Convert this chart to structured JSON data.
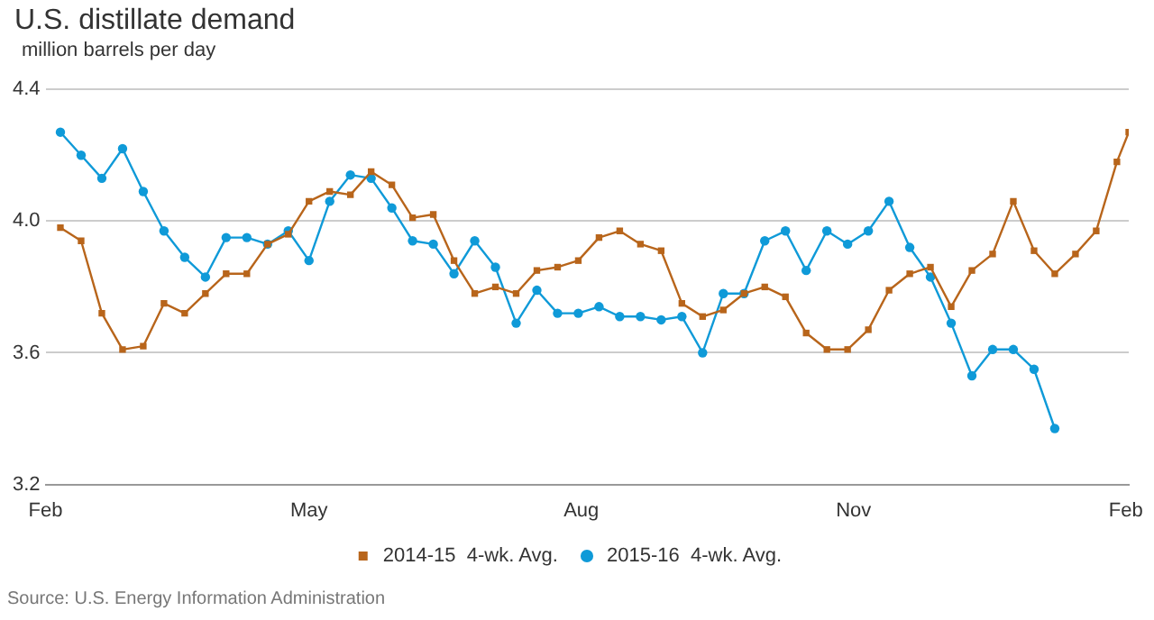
{
  "chart_data": {
    "type": "line",
    "title": "U.S. distillate demand",
    "subtitle": "million barrels per day",
    "annotations": [
      "Source: U.S. Energy Information Administration"
    ],
    "xlim": [
      "2015-02-01",
      "2016-02-02"
    ],
    "xticks": [
      {
        "value": "2015-02-01",
        "label": "Feb"
      },
      {
        "value": "2015-05-01",
        "label": "May"
      },
      {
        "value": "2015-08-01",
        "label": "Aug"
      },
      {
        "value": "2015-11-01",
        "label": "Nov"
      },
      {
        "value": "2016-02-01",
        "label": "Feb"
      }
    ],
    "ylim": [
      3.2,
      4.4
    ],
    "yticks": [
      {
        "value": 3.2,
        "label": "3.2"
      },
      {
        "value": 3.6,
        "label": "3.6"
      },
      {
        "value": 4,
        "label": "4.0"
      },
      {
        "value": 4.4,
        "label": "4.4"
      }
    ],
    "grid": "y",
    "legend": "bottom",
    "series": [
      {
        "name": "2014-15  4-wk. Avg.",
        "color": "#b8651b",
        "marker": "square",
        "x": [
          "2015-02-06",
          "2015-02-13",
          "2015-02-20",
          "2015-02-27",
          "2015-03-06",
          "2015-03-13",
          "2015-03-20",
          "2015-03-27",
          "2015-04-03",
          "2015-04-10",
          "2015-04-17",
          "2015-04-24",
          "2015-05-01",
          "2015-05-08",
          "2015-05-15",
          "2015-05-22",
          "2015-05-29",
          "2015-06-05",
          "2015-06-12",
          "2015-06-19",
          "2015-06-26",
          "2015-07-03",
          "2015-07-10",
          "2015-07-17",
          "2015-07-24",
          "2015-07-31",
          "2015-08-07",
          "2015-08-14",
          "2015-08-21",
          "2015-08-28",
          "2015-09-04",
          "2015-09-11",
          "2015-09-18",
          "2015-09-25",
          "2015-10-02",
          "2015-10-09",
          "2015-10-16",
          "2015-10-23",
          "2015-10-30",
          "2015-11-06",
          "2015-11-13",
          "2015-11-20",
          "2015-11-27",
          "2015-12-04",
          "2015-12-11",
          "2015-12-18",
          "2015-12-25",
          "2016-01-01",
          "2016-01-08",
          "2016-01-15",
          "2016-01-22",
          "2016-01-29",
          "2016-02-02"
        ],
        "values": [
          3.98,
          3.94,
          3.72,
          3.61,
          3.62,
          3.75,
          3.72,
          3.78,
          3.84,
          3.84,
          3.93,
          3.96,
          4.06,
          4.09,
          4.08,
          4.15,
          4.11,
          4.01,
          4.02,
          3.88,
          3.78,
          3.8,
          3.78,
          3.85,
          3.86,
          3.88,
          3.95,
          3.97,
          3.93,
          3.91,
          3.75,
          3.71,
          3.73,
          3.78,
          3.8,
          3.77,
          3.66,
          3.61,
          3.61,
          3.67,
          3.79,
          3.84,
          3.86,
          3.74,
          3.85,
          3.9,
          4.06,
          3.91,
          3.84,
          3.9,
          3.97,
          4.18,
          4.27
        ]
      },
      {
        "name": "2015-16  4-wk. Avg.",
        "color": "#0f9ad8",
        "marker": "circle",
        "x": [
          "2015-02-06",
          "2015-02-13",
          "2015-02-20",
          "2015-02-27",
          "2015-03-06",
          "2015-03-13",
          "2015-03-20",
          "2015-03-27",
          "2015-04-03",
          "2015-04-10",
          "2015-04-17",
          "2015-04-24",
          "2015-05-01",
          "2015-05-08",
          "2015-05-15",
          "2015-05-22",
          "2015-05-29",
          "2015-06-05",
          "2015-06-12",
          "2015-06-19",
          "2015-06-26",
          "2015-07-03",
          "2015-07-10",
          "2015-07-17",
          "2015-07-24",
          "2015-07-31",
          "2015-08-07",
          "2015-08-14",
          "2015-08-21",
          "2015-08-28",
          "2015-09-04",
          "2015-09-11",
          "2015-09-18",
          "2015-09-25",
          "2015-10-02",
          "2015-10-09",
          "2015-10-16",
          "2015-10-23",
          "2015-10-30",
          "2015-11-06",
          "2015-11-13",
          "2015-11-20",
          "2015-11-27",
          "2015-12-04",
          "2015-12-11",
          "2015-12-18",
          "2015-12-25",
          "2016-01-01",
          "2016-01-08"
        ],
        "values": [
          4.27,
          4.2,
          4.13,
          4.22,
          4.09,
          3.97,
          3.89,
          3.83,
          3.95,
          3.95,
          3.93,
          3.97,
          3.88,
          4.06,
          4.14,
          4.13,
          4.04,
          3.94,
          3.93,
          3.84,
          3.94,
          3.86,
          3.69,
          3.79,
          3.72,
          3.72,
          3.74,
          3.71,
          3.71,
          3.7,
          3.71,
          3.6,
          3.78,
          3.78,
          3.94,
          3.97,
          3.85,
          3.97,
          3.93,
          3.97,
          4.06,
          3.92,
          3.83,
          3.69,
          3.53,
          3.61,
          3.61,
          3.55,
          3.37
        ]
      }
    ]
  }
}
